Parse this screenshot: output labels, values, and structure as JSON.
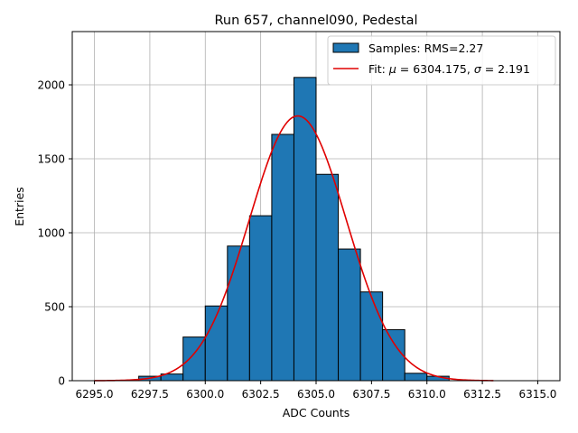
{
  "chart_data": {
    "type": "bar",
    "title": "Run 657, channel090, Pedestal",
    "xlabel": "ADC Counts",
    "ylabel": "Entries",
    "xlim": [
      6294.0,
      6316.0
    ],
    "ylim": [
      0,
      2360
    ],
    "grid": true,
    "legend_position": "top-right",
    "x_ticks": [
      6295.0,
      6297.5,
      6300.0,
      6302.5,
      6305.0,
      6307.5,
      6310.0,
      6312.5,
      6315.0
    ],
    "x_tick_labels": [
      "6295.0",
      "6297.5",
      "6300.0",
      "6302.5",
      "6305.0",
      "6307.5",
      "6310.0",
      "6312.5",
      "6315.0"
    ],
    "y_ticks": [
      0,
      500,
      1000,
      1500,
      2000
    ],
    "y_tick_labels": [
      "0",
      "500",
      "1000",
      "1500",
      "2000"
    ],
    "bar_color": "#1f77b4",
    "fit_color": "#e00000",
    "bins": [
      {
        "x0": 6297.0,
        "x1": 6298.0,
        "value": 30
      },
      {
        "x0": 6298.0,
        "x1": 6299.0,
        "value": 45
      },
      {
        "x0": 6299.0,
        "x1": 6300.0,
        "value": 295
      },
      {
        "x0": 6300.0,
        "x1": 6301.0,
        "value": 505
      },
      {
        "x0": 6301.0,
        "x1": 6302.0,
        "value": 910
      },
      {
        "x0": 6302.0,
        "x1": 6303.0,
        "value": 1115
      },
      {
        "x0": 6303.0,
        "x1": 6304.0,
        "value": 1665
      },
      {
        "x0": 6304.0,
        "x1": 6305.0,
        "value": 2050
      },
      {
        "x0": 6305.0,
        "x1": 6306.0,
        "value": 1395
      },
      {
        "x0": 6306.0,
        "x1": 6307.0,
        "value": 890
      },
      {
        "x0": 6307.0,
        "x1": 6308.0,
        "value": 600
      },
      {
        "x0": 6308.0,
        "x1": 6309.0,
        "value": 345
      },
      {
        "x0": 6309.0,
        "x1": 6310.0,
        "value": 50
      },
      {
        "x0": 6310.0,
        "x1": 6311.0,
        "value": 30
      }
    ],
    "fit": {
      "mu": 6304.175,
      "sigma": 2.191,
      "amplitude": 1790,
      "x_range": [
        6295.0,
        6313.0
      ]
    },
    "legend": [
      {
        "type": "patch",
        "label": "Samples: RMS=2.27"
      },
      {
        "type": "line",
        "label_parts": [
          "Fit: ",
          "μ",
          " = 6304.175, ",
          "σ",
          " = 2.191"
        ]
      }
    ]
  }
}
